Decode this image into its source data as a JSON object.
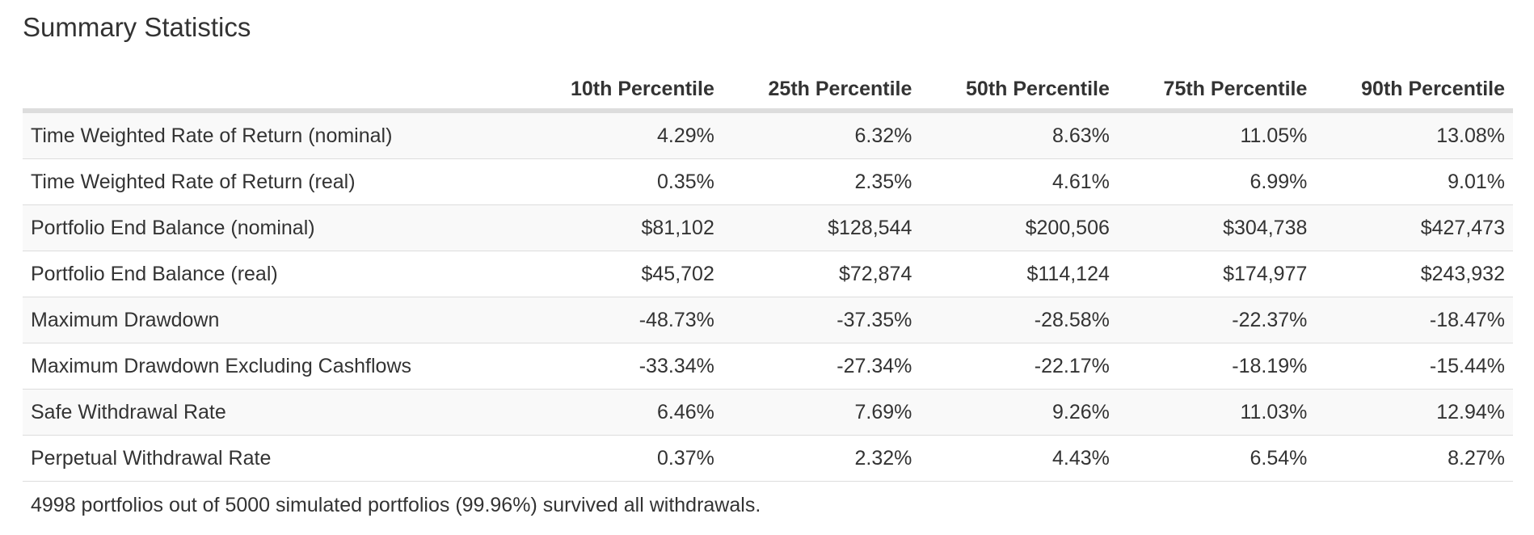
{
  "title": "Summary Statistics",
  "table": {
    "headers": [
      "",
      "10th Percentile",
      "25th Percentile",
      "50th Percentile",
      "75th Percentile",
      "90th Percentile"
    ],
    "rows": [
      {
        "label": "Time Weighted Rate of Return (nominal)",
        "values": [
          "4.29%",
          "6.32%",
          "8.63%",
          "11.05%",
          "13.08%"
        ]
      },
      {
        "label": "Time Weighted Rate of Return (real)",
        "values": [
          "0.35%",
          "2.35%",
          "4.61%",
          "6.99%",
          "9.01%"
        ]
      },
      {
        "label": "Portfolio End Balance (nominal)",
        "values": [
          "$81,102",
          "$128,544",
          "$200,506",
          "$304,738",
          "$427,473"
        ]
      },
      {
        "label": "Portfolio End Balance (real)",
        "values": [
          "$45,702",
          "$72,874",
          "$114,124",
          "$174,977",
          "$243,932"
        ]
      },
      {
        "label": "Maximum Drawdown",
        "values": [
          "-48.73%",
          "-37.35%",
          "-28.58%",
          "-22.37%",
          "-18.47%"
        ]
      },
      {
        "label": "Maximum Drawdown Excluding Cashflows",
        "values": [
          "-33.34%",
          "-27.34%",
          "-22.17%",
          "-18.19%",
          "-15.44%"
        ]
      },
      {
        "label": "Safe Withdrawal Rate",
        "values": [
          "6.46%",
          "7.69%",
          "9.26%",
          "11.03%",
          "12.94%"
        ]
      },
      {
        "label": "Perpetual Withdrawal Rate",
        "values": [
          "0.37%",
          "2.32%",
          "4.43%",
          "6.54%",
          "8.27%"
        ]
      }
    ]
  },
  "footer": "4998 portfolios out of 5000 simulated portfolios (99.96%) survived all withdrawals."
}
